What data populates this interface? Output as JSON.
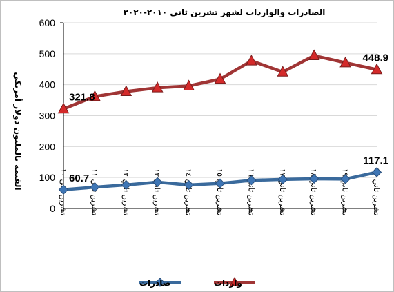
{
  "chart_data": {
    "type": "line",
    "title": "الصادرات والواردات لشهر تشرين ثاني ٢٠١٠-٢٠٢٠",
    "xlabel": "",
    "ylabel": "القيمة بالمليون دولار أمريكي",
    "categories": [
      "تشرين ثاني ١٠",
      "تشرين ثاني ١١",
      "تشرين ثاني ١٢",
      "تشرين ثاني ١٣",
      "تشرين ثاني ١٤",
      "تشرين ثاني ١٥",
      "تشرين ثاني ١٦",
      "تشرين ثاني ١٧",
      "تشرين ثاني ١٨",
      "تشرين ثاني ١٩",
      "تشرين ثاني ٢٠"
    ],
    "ylim": [
      0,
      600
    ],
    "yticks": [
      0,
      100,
      200,
      300,
      400,
      500,
      600
    ],
    "grid": "horizontal",
    "legend": "bottom",
    "series": [
      {
        "name": "واردات",
        "color": "#a03535",
        "marker": "triangle",
        "values": [
          321.8,
          362,
          378,
          390,
          396,
          418,
          477,
          441,
          494,
          471,
          448.9
        ],
        "labels": {
          "0": "321.8",
          "10": "448.9"
        }
      },
      {
        "name": "صادرات",
        "color": "#3a6a9c",
        "marker": "diamond",
        "values": [
          60.7,
          69,
          76,
          85,
          76,
          81,
          91,
          94,
          96,
          95,
          117.1
        ],
        "labels": {
          "0": "60.7",
          "10": "117.1"
        }
      }
    ]
  }
}
